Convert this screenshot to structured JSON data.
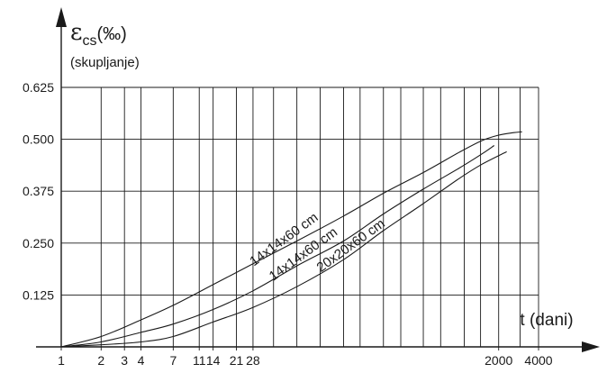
{
  "chart_data": {
    "type": "line",
    "ylabel_symbol": "ε",
    "ylabel_sub": "cs",
    "ylabel_unit": "(‰)",
    "ylabel_note": "(skupljanje)",
    "xlabel": "t (dani)",
    "x_scale": "log",
    "xlim": [
      1,
      4000
    ],
    "ylim": [
      0,
      0.625
    ],
    "x_ticks": [
      1,
      2,
      3,
      4,
      7,
      11,
      14,
      21,
      28,
      2000,
      4000
    ],
    "x_tick_labels": [
      "1",
      "2",
      "3",
      "4",
      "7",
      "11",
      "14",
      "21",
      "28",
      "2000",
      "4000"
    ],
    "x_grid": [
      2,
      3,
      4,
      7,
      11,
      14,
      21,
      28,
      40,
      60,
      90,
      135,
      180,
      270,
      365,
      540,
      730,
      1100,
      1460,
      2000,
      2900,
      4000
    ],
    "y_ticks": [
      0.125,
      0.25,
      0.375,
      0.5,
      0.625
    ],
    "y_tick_labels": [
      "0.125",
      "0.250",
      "0.375",
      "0.500",
      "0.625"
    ],
    "grid": true,
    "series": [
      {
        "name": "14x14x60 cm",
        "points": [
          [
            1,
            0
          ],
          [
            2,
            0.025
          ],
          [
            4,
            0.065
          ],
          [
            7,
            0.1
          ],
          [
            14,
            0.15
          ],
          [
            28,
            0.2
          ],
          [
            60,
            0.255
          ],
          [
            135,
            0.315
          ],
          [
            270,
            0.37
          ],
          [
            540,
            0.42
          ],
          [
            1000,
            0.468
          ],
          [
            1500,
            0.497
          ],
          [
            2000,
            0.51
          ],
          [
            2600,
            0.516
          ],
          [
            3000,
            0.518
          ]
        ]
      },
      {
        "name": "14x14x60 cm",
        "points": [
          [
            1,
            0
          ],
          [
            2,
            0.012
          ],
          [
            4,
            0.035
          ],
          [
            7,
            0.055
          ],
          [
            14,
            0.09
          ],
          [
            28,
            0.135
          ],
          [
            60,
            0.195
          ],
          [
            135,
            0.255
          ],
          [
            270,
            0.32
          ],
          [
            540,
            0.38
          ],
          [
            1000,
            0.43
          ],
          [
            1500,
            0.465
          ],
          [
            1850,
            0.485
          ]
        ]
      },
      {
        "name": "20x20x60 cm",
        "points": [
          [
            1,
            0
          ],
          [
            2,
            0.005
          ],
          [
            4,
            0.012
          ],
          [
            7,
            0.025
          ],
          [
            14,
            0.06
          ],
          [
            28,
            0.095
          ],
          [
            60,
            0.145
          ],
          [
            135,
            0.21
          ],
          [
            270,
            0.28
          ],
          [
            540,
            0.345
          ],
          [
            1000,
            0.405
          ],
          [
            1500,
            0.44
          ],
          [
            2300,
            0.47
          ]
        ]
      }
    ]
  }
}
